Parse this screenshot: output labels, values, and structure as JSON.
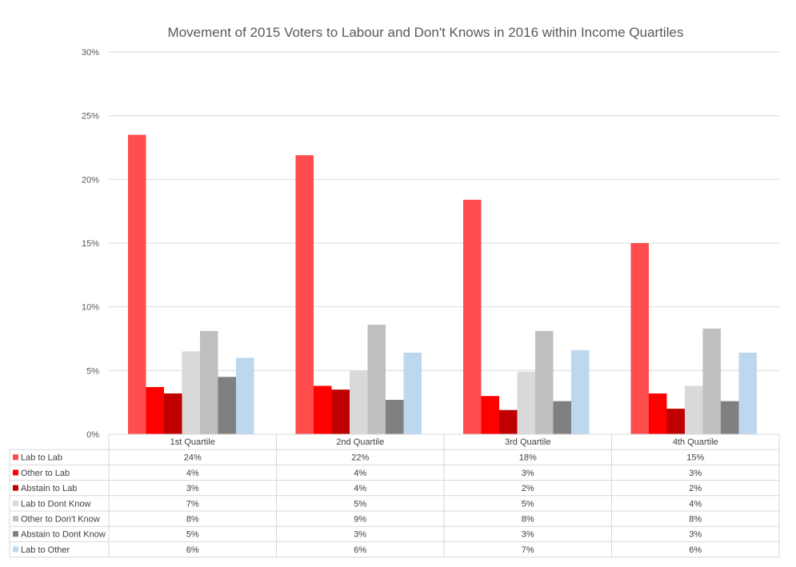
{
  "chart_data": {
    "type": "bar",
    "title": "Movement of 2015 Voters to Labour and Don't Knows in 2016 within Income Quartiles",
    "categories": [
      "1st Quartile",
      "2nd Quartile",
      "3rd Quartile",
      "4th Quartile"
    ],
    "ylim": [
      0,
      30
    ],
    "yticks": [
      "0%",
      "5%",
      "10%",
      "15%",
      "20%",
      "25%",
      "30%"
    ],
    "grid": true,
    "legend": "data-table",
    "series": [
      {
        "name": "Lab to Lab",
        "color": "#FF4D4D",
        "values": [
          23.5,
          21.9,
          18.4,
          15.0
        ],
        "labels": [
          "24%",
          "22%",
          "18%",
          "15%"
        ]
      },
      {
        "name": "Other to Lab",
        "color": "#FF0000",
        "values": [
          3.7,
          3.8,
          3.0,
          3.2
        ],
        "labels": [
          "4%",
          "4%",
          "3%",
          "3%"
        ]
      },
      {
        "name": "Abstain to Lab",
        "color": "#C00000",
        "values": [
          3.2,
          3.5,
          1.9,
          2.0
        ],
        "labels": [
          "3%",
          "4%",
          "2%",
          "2%"
        ]
      },
      {
        "name": "Lab to Dont Know",
        "color": "#D9D9D9",
        "values": [
          6.5,
          5.0,
          4.9,
          3.8
        ],
        "labels": [
          "7%",
          "5%",
          "5%",
          "4%"
        ]
      },
      {
        "name": "Other to Don't Know",
        "color": "#BFBFBF",
        "values": [
          8.1,
          8.6,
          8.1,
          8.3
        ],
        "labels": [
          "8%",
          "9%",
          "8%",
          "8%"
        ]
      },
      {
        "name": "Abstain to Dont Know",
        "color": "#808080",
        "values": [
          4.5,
          2.7,
          2.6,
          2.6
        ],
        "labels": [
          "5%",
          "3%",
          "3%",
          "3%"
        ]
      },
      {
        "name": "Lab to Other",
        "color": "#BDD7EE",
        "values": [
          6.0,
          6.4,
          6.6,
          6.4
        ],
        "labels": [
          "6%",
          "6%",
          "7%",
          "6%"
        ]
      }
    ]
  }
}
